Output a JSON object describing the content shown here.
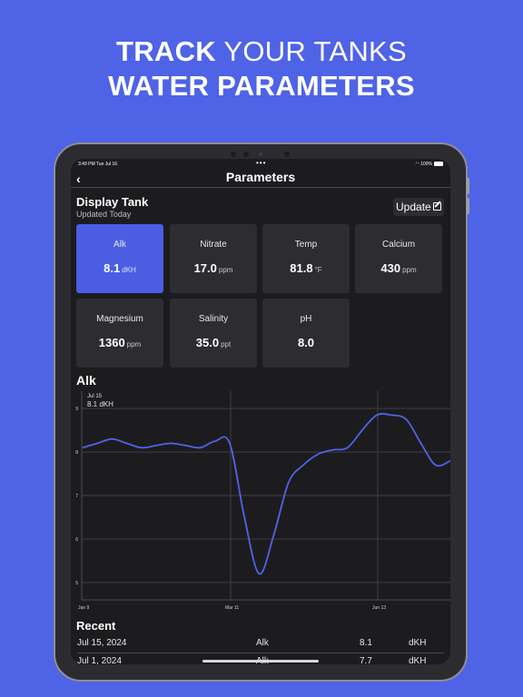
{
  "headline": {
    "line1_bold": "TRACK",
    "line1_rest": "YOUR TANKS",
    "line2": "WATER PARAMETERS"
  },
  "status_bar": {
    "time_date": "3:49 PM   Tue Jul 16",
    "multitask_dots": "•••",
    "battery": "100%",
    "wifi_icon": "wifi-icon"
  },
  "nav": {
    "back_icon": "chevron-left-icon",
    "back_glyph": "‹",
    "title": "Parameters"
  },
  "tank": {
    "name": "Display Tank",
    "updated": "Updated Today",
    "update_button": "Update",
    "update_icon": "edit-icon"
  },
  "parameters": [
    {
      "label": "Alk",
      "value": "8.1",
      "unit": "dKH",
      "selected": true
    },
    {
      "label": "Nitrate",
      "value": "17.0",
      "unit": "ppm",
      "selected": false
    },
    {
      "label": "Temp",
      "value": "81.8",
      "unit": "°F",
      "selected": false
    },
    {
      "label": "Calcium",
      "value": "430",
      "unit": "ppm",
      "selected": false
    },
    {
      "label": "Magnesium",
      "value": "1360",
      "unit": "ppm",
      "selected": false
    },
    {
      "label": "Salinity",
      "value": "35.0",
      "unit": "ppt",
      "selected": false
    },
    {
      "label": "pH",
      "value": "8.0",
      "unit": "",
      "selected": false
    }
  ],
  "chart": {
    "title": "Alk",
    "tooltip_date": "Jul 15",
    "tooltip_value": "8.1 dKH"
  },
  "chart_data": {
    "type": "line",
    "title": "Alk",
    "xlabel": "",
    "ylabel": "",
    "x_tick_labels": [
      "Jan 9",
      "Mar 11",
      "Jun 13"
    ],
    "y_tick_labels": [
      "9",
      "8",
      "7",
      "6",
      "5"
    ],
    "ylim": [
      4.6,
      9.4
    ],
    "grid": true,
    "series": [
      {
        "values": [
          8.1,
          8.2,
          8.3,
          8.2,
          8.1,
          8.15,
          8.2,
          8.15,
          8.1,
          8.25,
          8.2,
          6.5,
          5.2,
          6.1,
          7.3,
          7.7,
          7.95,
          8.05,
          8.1,
          8.5,
          8.85,
          8.85,
          8.75,
          8.2,
          7.7,
          7.8
        ],
        "color": "#4f63e6"
      }
    ]
  },
  "recent": {
    "title": "Recent",
    "rows": [
      {
        "date": "Jul 15, 2024",
        "param": "Alk",
        "value": "8.1",
        "unit": "dKH"
      },
      {
        "date": "Jul 1, 2024",
        "param": "Alk",
        "value": "7.7",
        "unit": "dKH"
      }
    ]
  }
}
